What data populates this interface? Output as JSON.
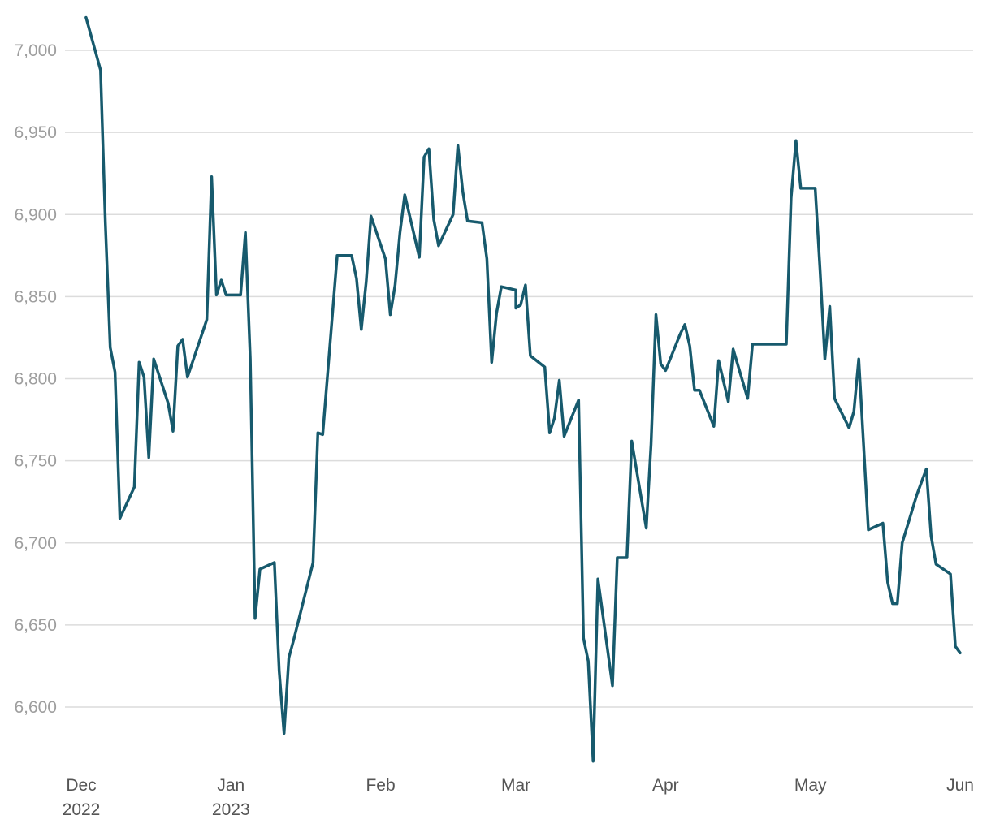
{
  "chart_data": {
    "type": "line",
    "title": "",
    "xlabel": "",
    "ylabel": "",
    "x_range": [
      "2022-12-01",
      "2023-06-01"
    ],
    "ylim": [
      6567,
      7020
    ],
    "grid": "horizontal",
    "y_ticks": [
      {
        "value": 6600,
        "label": "6,600"
      },
      {
        "value": 6650,
        "label": "6,650"
      },
      {
        "value": 6700,
        "label": "6,700"
      },
      {
        "value": 6750,
        "label": "6,750"
      },
      {
        "value": 6800,
        "label": "6,800"
      },
      {
        "value": 6850,
        "label": "6,850"
      },
      {
        "value": 6900,
        "label": "6,900"
      },
      {
        "value": 6950,
        "label": "6,950"
      },
      {
        "value": 7000,
        "label": "7,000"
      }
    ],
    "x_ticks": [
      {
        "date": "2022-12-01",
        "label": "Dec",
        "sublabel": "2022"
      },
      {
        "date": "2023-01-01",
        "label": "Jan",
        "sublabel": "2023"
      },
      {
        "date": "2023-02-01",
        "label": "Feb",
        "sublabel": ""
      },
      {
        "date": "2023-03-01",
        "label": "Mar",
        "sublabel": ""
      },
      {
        "date": "2023-04-01",
        "label": "Apr",
        "sublabel": ""
      },
      {
        "date": "2023-05-01",
        "label": "May",
        "sublabel": ""
      },
      {
        "date": "2023-06-01",
        "label": "Jun",
        "sublabel": ""
      }
    ],
    "colors": {
      "line": "#175a6d",
      "grid": "#dcdcdc"
    },
    "series": [
      {
        "name": "",
        "points": [
          [
            "2022-12-02",
            7020
          ],
          [
            "2022-12-05",
            6988
          ],
          [
            "2022-12-06",
            6895
          ],
          [
            "2022-12-07",
            6819
          ],
          [
            "2022-12-08",
            6804
          ],
          [
            "2022-12-09",
            6715
          ],
          [
            "2022-12-12",
            6734
          ],
          [
            "2022-12-13",
            6810
          ],
          [
            "2022-12-14",
            6801
          ],
          [
            "2022-12-15",
            6752
          ],
          [
            "2022-12-16",
            6812
          ],
          [
            "2022-12-19",
            6785
          ],
          [
            "2022-12-20",
            6768
          ],
          [
            "2022-12-21",
            6820
          ],
          [
            "2022-12-22",
            6824
          ],
          [
            "2022-12-23",
            6801
          ],
          [
            "2022-12-27",
            6836
          ],
          [
            "2022-12-28",
            6923
          ],
          [
            "2022-12-29",
            6851
          ],
          [
            "2022-12-30",
            6860
          ],
          [
            "2022-12-31",
            6851
          ],
          [
            "2023-01-03",
            6851
          ],
          [
            "2023-01-04",
            6889
          ],
          [
            "2023-01-05",
            6812
          ],
          [
            "2023-01-06",
            6654
          ],
          [
            "2023-01-07",
            6684
          ],
          [
            "2023-01-10",
            6688
          ],
          [
            "2023-01-11",
            6622
          ],
          [
            "2023-01-12",
            6584
          ],
          [
            "2023-01-13",
            6630
          ],
          [
            "2023-01-14",
            6641
          ],
          [
            "2023-01-18",
            6688
          ],
          [
            "2023-01-19",
            6767
          ],
          [
            "2023-01-20",
            6766
          ],
          [
            "2023-01-23",
            6875
          ],
          [
            "2023-01-26",
            6875
          ],
          [
            "2023-01-27",
            6861
          ],
          [
            "2023-01-28",
            6830
          ],
          [
            "2023-01-29",
            6859
          ],
          [
            "2023-01-30",
            6899
          ],
          [
            "2023-02-02",
            6873
          ],
          [
            "2023-02-03",
            6839
          ],
          [
            "2023-02-04",
            6857
          ],
          [
            "2023-02-05",
            6889
          ],
          [
            "2023-02-06",
            6912
          ],
          [
            "2023-02-09",
            6874
          ],
          [
            "2023-02-10",
            6935
          ],
          [
            "2023-02-11",
            6940
          ],
          [
            "2023-02-12",
            6897
          ],
          [
            "2023-02-13",
            6881
          ],
          [
            "2023-02-16",
            6900
          ],
          [
            "2023-02-17",
            6942
          ],
          [
            "2023-02-18",
            6914
          ],
          [
            "2023-02-19",
            6896
          ],
          [
            "2023-02-22",
            6895
          ],
          [
            "2023-02-23",
            6873
          ],
          [
            "2023-02-24",
            6810
          ],
          [
            "2023-02-25",
            6840
          ],
          [
            "2023-02-26",
            6856
          ],
          [
            "2023-02-29",
            6854
          ],
          [
            "2023-03-01",
            6843
          ],
          [
            "2023-03-02",
            6845
          ],
          [
            "2023-03-03",
            6857
          ],
          [
            "2023-03-04",
            6814
          ],
          [
            "2023-03-07",
            6807
          ],
          [
            "2023-03-08",
            6767
          ],
          [
            "2023-03-09",
            6776
          ],
          [
            "2023-03-10",
            6799
          ],
          [
            "2023-03-11",
            6765
          ],
          [
            "2023-03-14",
            6787
          ],
          [
            "2023-03-15",
            6642
          ],
          [
            "2023-03-16",
            6628
          ],
          [
            "2023-03-17",
            6567
          ],
          [
            "2023-03-18",
            6678
          ],
          [
            "2023-03-21",
            6613
          ],
          [
            "2023-03-22",
            6691
          ],
          [
            "2023-03-24",
            6691
          ],
          [
            "2023-03-25",
            6762
          ],
          [
            "2023-03-28",
            6709
          ],
          [
            "2023-03-29",
            6760
          ],
          [
            "2023-03-30",
            6839
          ],
          [
            "2023-03-31",
            6809
          ],
          [
            "2023-04-01",
            6805
          ],
          [
            "2023-04-04",
            6827
          ],
          [
            "2023-04-05",
            6833
          ],
          [
            "2023-04-06",
            6820
          ],
          [
            "2023-04-07",
            6793
          ],
          [
            "2023-04-08",
            6793
          ],
          [
            "2023-04-11",
            6771
          ],
          [
            "2023-04-12",
            6811
          ],
          [
            "2023-04-14",
            6786
          ],
          [
            "2023-04-15",
            6818
          ],
          [
            "2023-04-18",
            6788
          ],
          [
            "2023-04-19",
            6821
          ],
          [
            "2023-04-26",
            6821
          ],
          [
            "2023-04-27",
            6910
          ],
          [
            "2023-04-28",
            6945
          ],
          [
            "2023-04-29",
            6916
          ],
          [
            "2023-05-02",
            6916
          ],
          [
            "2023-05-03",
            6866
          ],
          [
            "2023-05-04",
            6812
          ],
          [
            "2023-05-05",
            6844
          ],
          [
            "2023-05-06",
            6788
          ],
          [
            "2023-05-09",
            6770
          ],
          [
            "2023-05-10",
            6780
          ],
          [
            "2023-05-11",
            6812
          ],
          [
            "2023-05-12",
            6760
          ],
          [
            "2023-05-13",
            6708
          ],
          [
            "2023-05-16",
            6712
          ],
          [
            "2023-05-17",
            6676
          ],
          [
            "2023-05-18",
            6663
          ],
          [
            "2023-05-19",
            6663
          ],
          [
            "2023-05-20",
            6700
          ],
          [
            "2023-05-23",
            6729
          ],
          [
            "2023-05-24",
            6737
          ],
          [
            "2023-05-25",
            6745
          ],
          [
            "2023-05-26",
            6704
          ],
          [
            "2023-05-27",
            6687
          ],
          [
            "2023-05-30",
            6681
          ],
          [
            "2023-05-31",
            6637
          ],
          [
            "2023-06-01",
            6633
          ]
        ]
      }
    ]
  }
}
